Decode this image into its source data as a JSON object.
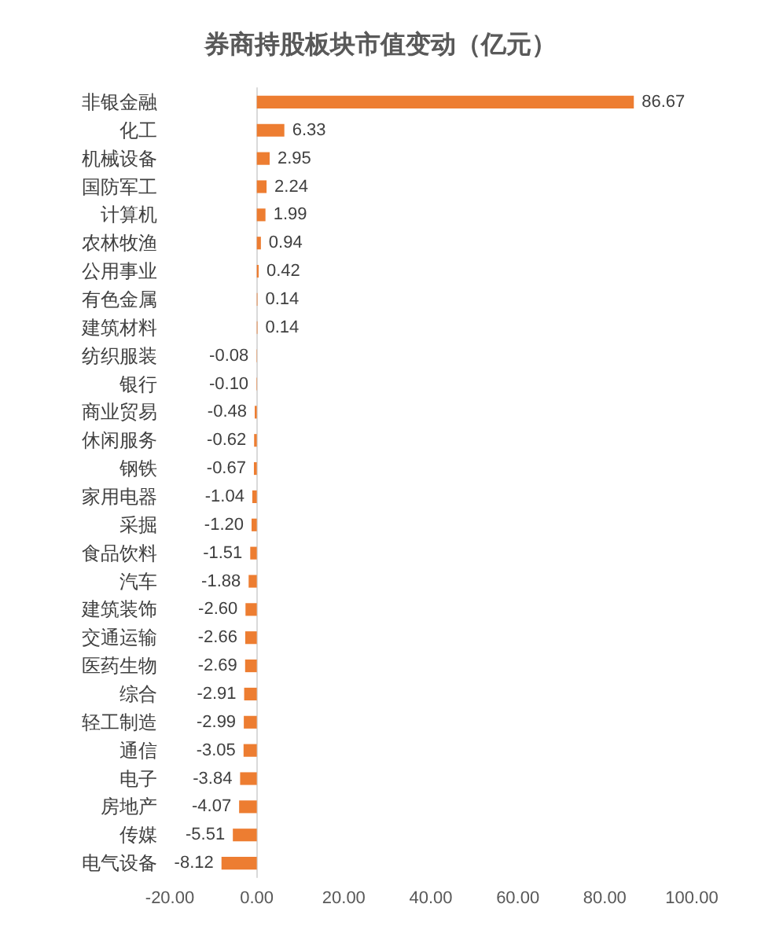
{
  "chart_data": {
    "type": "bar",
    "orientation": "horizontal",
    "title": "券商持股板块市值变动（亿元）",
    "categories": [
      "非银金融",
      "化工",
      "机械设备",
      "国防军工",
      "计算机",
      "农林牧渔",
      "公用事业",
      "有色金属",
      "建筑材料",
      "纺织服装",
      "银行",
      "商业贸易",
      "休闲服务",
      "钢铁",
      "家用电器",
      "采掘",
      "食品饮料",
      "汽车",
      "建筑装饰",
      "交通运输",
      "医药生物",
      "综合",
      "轻工制造",
      "通信",
      "电子",
      "房地产",
      "传媒",
      "电气设备"
    ],
    "values": [
      86.67,
      6.33,
      2.95,
      2.24,
      1.99,
      0.94,
      0.42,
      0.14,
      0.14,
      -0.08,
      -0.1,
      -0.48,
      -0.62,
      -0.67,
      -1.04,
      -1.2,
      -1.51,
      -1.88,
      -2.6,
      -2.66,
      -2.69,
      -2.91,
      -2.99,
      -3.05,
      -3.84,
      -4.07,
      -5.51,
      -8.12
    ],
    "value_labels": [
      "86.67",
      "6.33",
      "2.95",
      "2.24",
      "1.99",
      "0.94",
      "0.42",
      "0.14",
      "0.14",
      "-0.08",
      "-0.10",
      "-0.48",
      "-0.62",
      "-0.67",
      "-1.04",
      "-1.20",
      "-1.51",
      "-1.88",
      "-2.60",
      "-2.66",
      "-2.69",
      "-2.91",
      "-2.99",
      "-3.05",
      "-3.84",
      "-4.07",
      "-5.51",
      "-8.12"
    ],
    "color": "#ed7d31",
    "xlim": [
      -20,
      100
    ],
    "xticks": [
      {
        "value": -20,
        "label": "-20.00"
      },
      {
        "value": 0,
        "label": "0.00"
      },
      {
        "value": 20,
        "label": "20.00"
      },
      {
        "value": 40,
        "label": "40.00"
      },
      {
        "value": 60,
        "label": "60.00"
      },
      {
        "value": 80,
        "label": "80.00"
      },
      {
        "value": 100,
        "label": "100.00"
      }
    ]
  }
}
